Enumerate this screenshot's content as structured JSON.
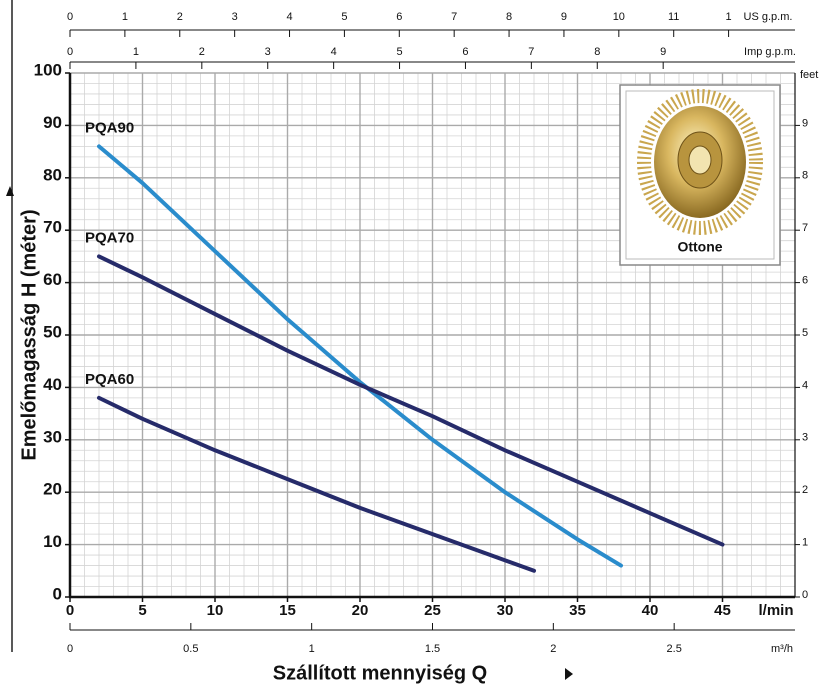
{
  "chart_data": {
    "type": "line",
    "x_label": "Szállított mennyiség  Q",
    "y_label": "Emelőmagasság  H  (méter)",
    "x_unit": "l/min",
    "xlim": [
      0,
      50
    ],
    "xticks": [
      0,
      5,
      10,
      15,
      20,
      25,
      30,
      35,
      40,
      45
    ],
    "ylim": [
      0,
      100
    ],
    "yticks": [
      0,
      10,
      20,
      30,
      40,
      50,
      60,
      70,
      80,
      90,
      100
    ],
    "y2_unit": "feet",
    "y2lim": [
      0,
      10
    ],
    "y2ticks": [
      0,
      1,
      2,
      3,
      4,
      5,
      6,
      7,
      8,
      9
    ],
    "grid": true,
    "top_axes": [
      {
        "unit": "US g.p.m.",
        "lim": [
          0,
          13.21
        ],
        "ticks": [
          0,
          1,
          2,
          3,
          4,
          5,
          6,
          7,
          8,
          9,
          10,
          11,
          {
            "value": 12,
            "label": "1"
          }
        ]
      },
      {
        "unit": "Imp g.p.m.",
        "lim": [
          0,
          11
        ],
        "ticks": [
          0,
          1,
          2,
          3,
          4,
          5,
          6,
          7,
          8,
          9
        ]
      }
    ],
    "bottom_axis2": {
      "unit": "m³/h",
      "lim": [
        0,
        3
      ],
      "ticks": [
        0,
        0.5,
        1,
        1.5,
        2,
        2.5
      ]
    },
    "inset_label": "Ottone",
    "series": [
      {
        "name": "PQA90",
        "color": "#2a8ccc",
        "x": [
          2,
          5,
          10,
          15,
          20,
          25,
          30,
          35,
          38
        ],
        "values": [
          86,
          79,
          66,
          53,
          41,
          30,
          20,
          11,
          6
        ]
      },
      {
        "name": "PQA70",
        "color": "#262b6a",
        "x": [
          2,
          5,
          10,
          15,
          20,
          25,
          30,
          35,
          40,
          45
        ],
        "values": [
          65,
          61,
          54,
          47,
          40.5,
          34.5,
          28,
          22,
          16,
          10
        ]
      },
      {
        "name": "PQA60",
        "color": "#262b6a",
        "x": [
          2,
          5,
          10,
          15,
          20,
          25,
          32
        ],
        "values": [
          38,
          34,
          28,
          22.5,
          17,
          12,
          5
        ]
      }
    ]
  }
}
